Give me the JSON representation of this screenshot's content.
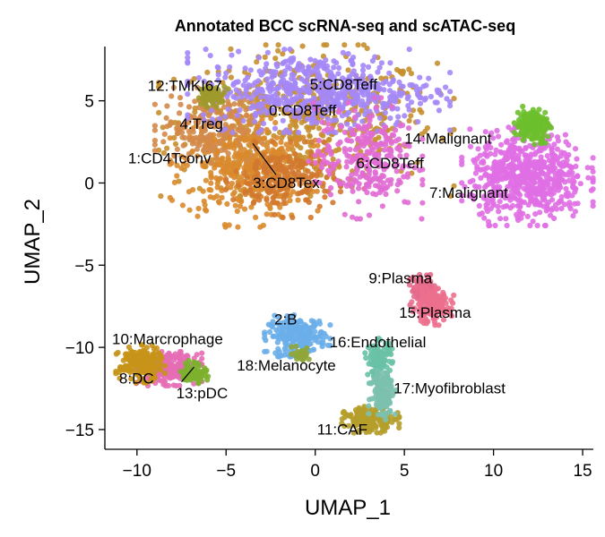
{
  "chart_data": {
    "type": "scatter",
    "title": "Annotated BCC scRNA-seq and scATAC-seq",
    "xlabel": "UMAP_1",
    "ylabel": "UMAP_2",
    "xlim": [
      -11.8,
      15.6
    ],
    "ylim": [
      -16.2,
      8.3
    ],
    "xticks": [
      -10,
      -5,
      0,
      5,
      10,
      15
    ],
    "yticks": [
      -15,
      -10,
      -5,
      0,
      5
    ],
    "xtick_labels": [
      "−10",
      "−5",
      "0",
      "5",
      "10",
      "15"
    ],
    "ytick_labels": [
      "−15",
      "−10",
      "−5",
      "0",
      "5"
    ],
    "grid": false,
    "legend": "none",
    "clusters": [
      {
        "label": "0:CD8Teff",
        "color": "#c68f2e",
        "x": -0.5,
        "y": 3.8,
        "sx": 3.6,
        "sy": 2.0,
        "n": 520,
        "label_x": -2.6,
        "label_y": 4.1
      },
      {
        "label": "1:CD4Tconv",
        "color": "#d98a2c",
        "x": -4.0,
        "y": 1.0,
        "sx": 1.8,
        "sy": 1.6,
        "n": 420,
        "label_x": -10.5,
        "label_y": 1.2
      },
      {
        "label": "2:B",
        "color": "#6aaeea",
        "x": -1.0,
        "y": -9.3,
        "sx": 0.8,
        "sy": 0.55,
        "n": 230,
        "label_x": -2.3,
        "label_y": -8.6
      },
      {
        "label": "3:CD8Tex",
        "color": "#d1782f",
        "x": -1.8,
        "y": 0.2,
        "sx": 1.4,
        "sy": 1.0,
        "n": 200,
        "label_x": -3.5,
        "label_y": -0.3
      },
      {
        "label": "4:Treg",
        "color": "#d38a4a",
        "x": -6.0,
        "y": 3.5,
        "sx": 1.3,
        "sy": 1.0,
        "n": 200,
        "label_x": -7.6,
        "label_y": 3.3
      },
      {
        "label": "5:CD8Teff",
        "color": "#a487f7",
        "x": 0.2,
        "y": 5.6,
        "sx": 3.2,
        "sy": 1.1,
        "n": 560,
        "label_x": -0.3,
        "label_y": 5.7
      },
      {
        "label": "6:CD8Teff",
        "color": "#e16bd4",
        "x": 2.8,
        "y": 1.5,
        "sx": 1.4,
        "sy": 1.6,
        "n": 260,
        "label_x": 2.3,
        "label_y": 0.9
      },
      {
        "label": "7:Malignant",
        "color": "#e06ee4",
        "x": 11.9,
        "y": 0.4,
        "sx": 1.6,
        "sy": 1.3,
        "n": 620,
        "label_x": 6.4,
        "label_y": -0.9
      },
      {
        "label": "8:DC",
        "color": "#e56db5",
        "x": -8.2,
        "y": -11.3,
        "sx": 0.8,
        "sy": 0.45,
        "n": 220,
        "label_x": -11.0,
        "label_y": -12.2
      },
      {
        "label": "9:Plasma",
        "color": "#e46a8c",
        "x": 6.1,
        "y": -6.5,
        "sx": 0.35,
        "sy": 0.4,
        "n": 110,
        "label_x": 3.0,
        "label_y": -6.1
      },
      {
        "label": "10:Marcrophage",
        "color": "#c69418",
        "x": -9.8,
        "y": -11.0,
        "sx": 0.6,
        "sy": 0.5,
        "n": 200,
        "label_x": -11.4,
        "label_y": -9.8
      },
      {
        "label": "11:CAF",
        "color": "#b59d2a",
        "x": 3.1,
        "y": -14.4,
        "sx": 0.7,
        "sy": 0.35,
        "n": 180,
        "label_x": 0.1,
        "label_y": -15.3
      },
      {
        "label": "12:TMKI67",
        "color": "#9e9a2b",
        "x": -5.8,
        "y": 5.3,
        "sx": 0.4,
        "sy": 0.3,
        "n": 60,
        "label_x": -9.4,
        "label_y": 5.6
      },
      {
        "label": "13:pDC",
        "color": "#7cb02e",
        "x": -6.8,
        "y": -11.5,
        "sx": 0.35,
        "sy": 0.3,
        "n": 80,
        "label_x": -7.8,
        "label_y": -13.1
      },
      {
        "label": "14:Malignant",
        "color": "#6dbf2c",
        "x": 12.2,
        "y": 3.5,
        "sx": 0.45,
        "sy": 0.5,
        "n": 170,
        "label_x": 5.0,
        "label_y": 2.4
      },
      {
        "label": "15:Plasma",
        "color": "#ec6f8d",
        "x": 6.5,
        "y": -7.5,
        "sx": 0.55,
        "sy": 0.5,
        "n": 140,
        "label_x": 4.7,
        "label_y": -8.2
      },
      {
        "label": "16:Endothelial",
        "color": "#69c1a6",
        "x": 3.6,
        "y": -10.8,
        "sx": 0.35,
        "sy": 0.6,
        "n": 110,
        "label_x": 0.8,
        "label_y": -10.0
      },
      {
        "label": "17:Myofibroblast",
        "color": "#7cc0ae",
        "x": 3.8,
        "y": -12.8,
        "sx": 0.35,
        "sy": 0.7,
        "n": 110,
        "label_x": 4.4,
        "label_y": -12.8
      },
      {
        "label": "18:Melanocyte",
        "color": "#8fa63a",
        "x": -0.8,
        "y": -10.4,
        "sx": 0.25,
        "sy": 0.2,
        "n": 30,
        "label_x": -4.4,
        "label_y": -11.4
      }
    ]
  }
}
